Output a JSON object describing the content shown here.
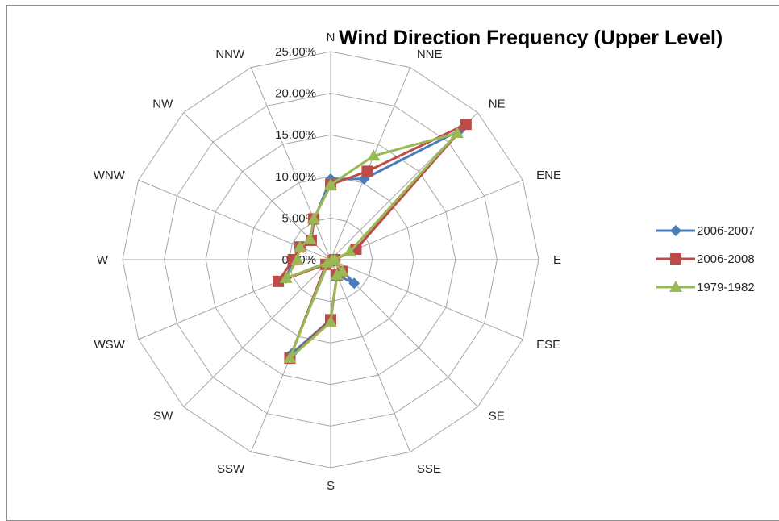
{
  "chart_data": {
    "type": "radar",
    "title": "Wind Direction Frequency (Upper Level)",
    "categories": [
      "N",
      "NNE",
      "NE",
      "ENE",
      "E",
      "ESE",
      "SE",
      "SSE",
      "S",
      "SSW",
      "SW",
      "WSW",
      "W",
      "WNW",
      "NW",
      "NNW"
    ],
    "r_ticks": [
      "0.00%",
      "5.00%",
      "10.00%",
      "15.00%",
      "20.00%",
      "25.00%"
    ],
    "rlim": [
      0,
      25
    ],
    "grid": true,
    "legend_position": "right",
    "series": [
      {
        "name": "2006-2007",
        "color": "#4a7ebb",
        "marker": "diamond",
        "values": [
          9.7,
          10.5,
          22.0,
          3.3,
          0.5,
          0.3,
          4.0,
          2.0,
          7.2,
          12.2,
          0.8,
          5.8,
          4.5,
          4.0,
          3.3,
          5.2
        ]
      },
      {
        "name": "2006-2008",
        "color": "#be4b48",
        "marker": "square",
        "values": [
          9.0,
          11.5,
          23.0,
          3.3,
          0.5,
          0.3,
          2.0,
          2.0,
          7.2,
          12.8,
          0.8,
          6.8,
          4.5,
          4.0,
          3.3,
          5.3
        ]
      },
      {
        "name": "1979-1982",
        "color": "#98b954",
        "marker": "triangle",
        "values": [
          9.0,
          13.5,
          21.5,
          2.5,
          0.5,
          0.2,
          2.0,
          2.0,
          7.5,
          12.8,
          0.5,
          5.8,
          4.0,
          4.0,
          3.5,
          5.3
        ]
      }
    ]
  }
}
